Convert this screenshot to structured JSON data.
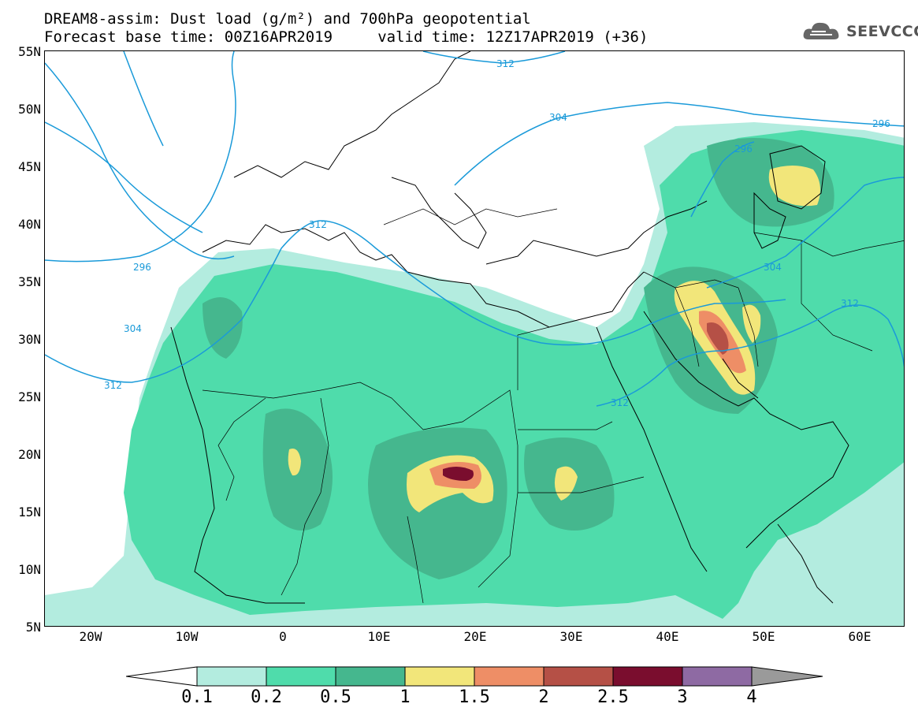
{
  "title": {
    "line1": "DREAM8-assim: Dust load (g/m²) and 700hPa geopotential",
    "line2": "Forecast base time: 00Z16APR2019     valid time: 12Z17APR2019 (+36)"
  },
  "logo": {
    "text": "SEEVCCC",
    "icon": "cloud-icon"
  },
  "axes": {
    "lat_labels": [
      "55N",
      "50N",
      "45N",
      "40N",
      "35N",
      "30N",
      "25N",
      "20N",
      "15N",
      "10N",
      "5N"
    ],
    "lon_labels": [
      "20W",
      "10W",
      "0",
      "10E",
      "20E",
      "30E",
      "40E",
      "50E",
      "60E"
    ]
  },
  "contours": {
    "color": "#1a9ad9",
    "labels": [
      "312",
      "304",
      "296",
      "296",
      "312",
      "296",
      "304",
      "312",
      "312",
      "304",
      "312"
    ]
  },
  "colorbar": {
    "labels": [
      "0.1",
      "0.2",
      "0.5",
      "1",
      "1.5",
      "2",
      "2.5",
      "3",
      "4"
    ],
    "colors": [
      "#b3ecdf",
      "#4fdcab",
      "#45b78e",
      "#f2e67a",
      "#ee8e66",
      "#b55046",
      "#7a0d2e",
      "#8e6aa3",
      "#9a9a9a"
    ]
  },
  "dust_colors": {
    "light": "#b3ecdf",
    "green": "#4fdcab",
    "dark": "#45b78e",
    "yellow": "#f2e67a",
    "orange": "#ee8e66",
    "brown": "#b55046",
    "maroon": "#7a0d2e"
  }
}
